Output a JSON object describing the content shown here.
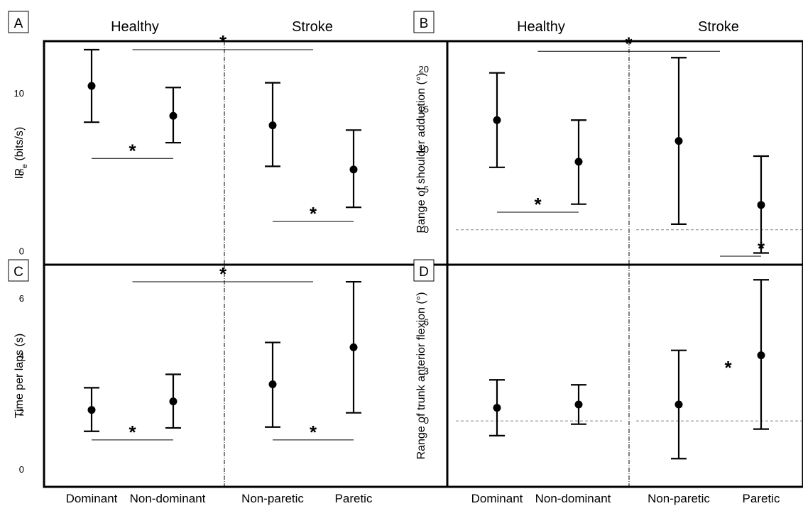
{
  "figure": {
    "group_left": "Healthy",
    "group_right": "Stroke"
  },
  "chart_data": [
    {
      "panel": "A",
      "type": "scatter",
      "categories": [
        "Dominant",
        "Non-dominant",
        "Non-paretic",
        "Paretic"
      ],
      "ylabel_main": "IP",
      "ylabel_sub": "e",
      "ylabel_unit": " (bits/s)",
      "ylim": [
        -0.3,
        12.8
      ],
      "yticks": [
        0,
        5,
        10
      ],
      "group_labels": [
        "Healthy",
        "Stroke"
      ],
      "series": [
        {
          "values": [
            10.5,
            8.6,
            8.0,
            5.2
          ],
          "lower": [
            8.2,
            6.9,
            5.4,
            2.8
          ],
          "upper": [
            12.8,
            10.4,
            10.7,
            7.7
          ]
        }
      ],
      "zero_line": false,
      "significance": [
        {
          "from": 0.5,
          "to": 2.5,
          "y": 12.8,
          "label": "*",
          "label_x": 1.5
        },
        {
          "from": 0,
          "to": 1,
          "y": 5.9,
          "label": "*",
          "label_x": 0.5
        },
        {
          "from": 2,
          "to": 3,
          "y": 1.9,
          "label": "*",
          "label_x": 2.5
        }
      ]
    },
    {
      "panel": "B",
      "type": "scatter",
      "categories": [
        "Dominant",
        "Non-dominant",
        "Non-paretic",
        "Paretic"
      ],
      "ylabel_main": "Range of shoulder adduction (°)",
      "ylim": [
        -3.3,
        22.5
      ],
      "yticks": [
        0,
        5,
        10,
        15,
        20
      ],
      "group_labels": [
        "Healthy",
        "Stroke"
      ],
      "series": [
        {
          "values": [
            13.7,
            8.5,
            11.1,
            3.1
          ],
          "lower": [
            7.8,
            3.2,
            0.7,
            -2.9
          ],
          "upper": [
            19.6,
            13.7,
            21.5,
            9.2
          ]
        }
      ],
      "zero_line": true,
      "significance": [
        {
          "from": 0.5,
          "to": 2.5,
          "y": 22.3,
          "label": "*",
          "label_x": 1.5
        },
        {
          "from": 0,
          "to": 1,
          "y": 2.2,
          "label": "*",
          "label_x": 0.5
        },
        {
          "from": 2.5,
          "to": 3.5,
          "y": -3.3,
          "label": "*",
          "label_x": 3.0
        }
      ]
    },
    {
      "panel": "C",
      "type": "scatter",
      "categories": [
        "Dominant",
        "Non-dominant",
        "Non-paretic",
        "Paretic"
      ],
      "ylabel_main": "Time per laps (s)",
      "ylim": [
        -0.3,
        6.9
      ],
      "yticks": [
        0,
        2,
        4,
        6
      ],
      "group_labels": [
        "Healthy",
        "Stroke"
      ],
      "series": [
        {
          "values": [
            2.1,
            2.4,
            3.0,
            4.3
          ],
          "lower": [
            1.35,
            1.47,
            1.5,
            2.0
          ],
          "upper": [
            2.88,
            3.35,
            4.47,
            6.6
          ]
        }
      ],
      "zero_line": false,
      "significance": [
        {
          "from": 0.5,
          "to": 2.5,
          "y": 6.6,
          "label": "*",
          "label_x": 1.5
        },
        {
          "from": 0,
          "to": 1,
          "y": 1.05,
          "label": "*",
          "label_x": 0.5
        },
        {
          "from": 2,
          "to": 3,
          "y": 1.05,
          "label": "*",
          "label_x": 2.5
        }
      ]
    },
    {
      "panel": "D",
      "type": "scatter",
      "categories": [
        "Dominant",
        "Non-dominant",
        "Non-paretic",
        "Paretic"
      ],
      "ylabel_main": "Range of trunk anterior flexion (°)",
      "ylim": [
        -3.5,
        9.0
      ],
      "yticks": [
        0,
        3,
        6
      ],
      "group_labels": [
        "Healthy",
        "Stroke"
      ],
      "series": [
        {
          "values": [
            0.8,
            1.0,
            1.0,
            4.0
          ],
          "lower": [
            -0.9,
            -0.2,
            -2.3,
            -0.5
          ],
          "upper": [
            2.5,
            2.2,
            4.3,
            8.6
          ]
        }
      ],
      "zero_line": true,
      "significance": [
        {
          "label": "*",
          "label_x": 2.6,
          "y": 3.2
        }
      ]
    }
  ]
}
